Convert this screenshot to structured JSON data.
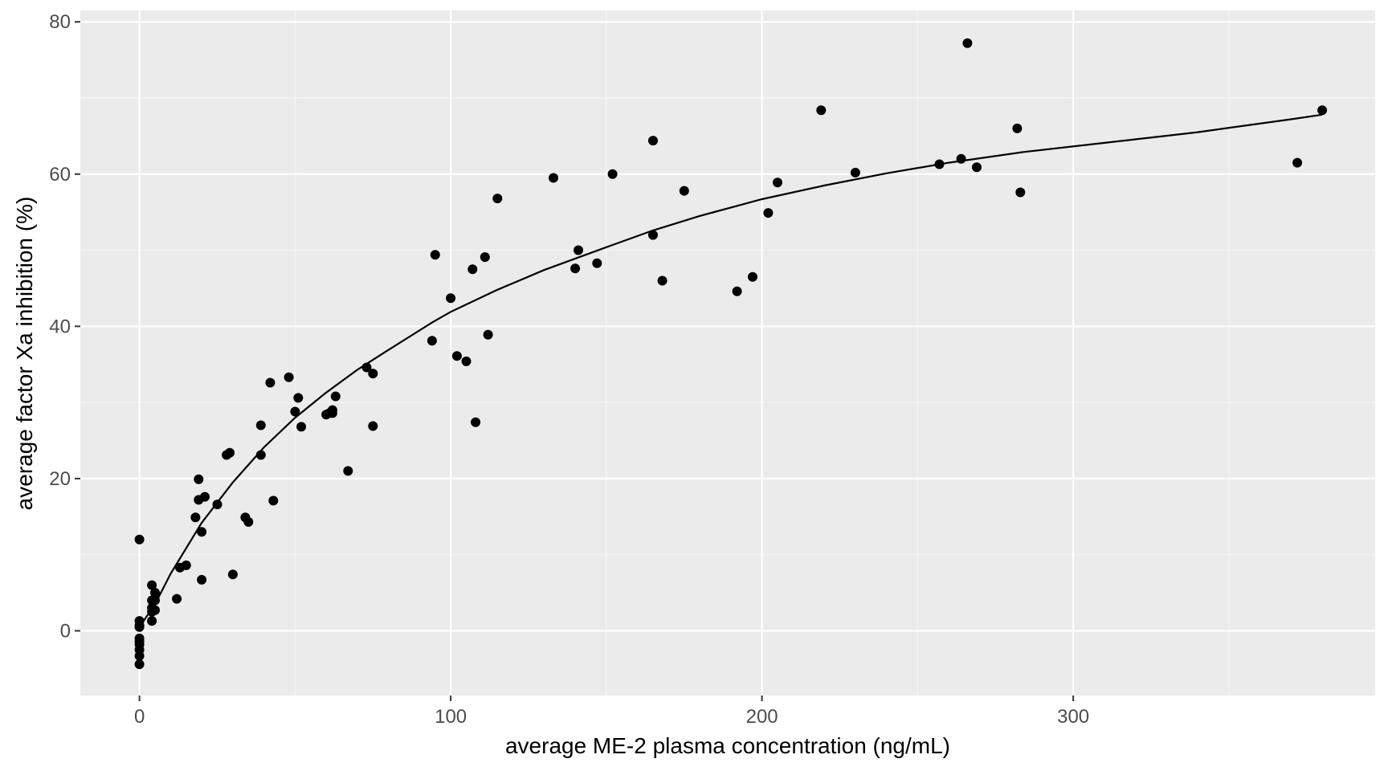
{
  "chart_data": {
    "type": "scatter",
    "title": "",
    "xlabel": "average ME-2 plasma concentration (ng/mL)",
    "ylabel": "average factor Xa inhibition (%)",
    "xlim": [
      -19,
      397
    ],
    "ylim": [
      -8.5,
      81.5
    ],
    "xticks": [
      0,
      100,
      200,
      300
    ],
    "yticks": [
      0,
      20,
      40,
      60,
      80
    ],
    "xtick_labels": [
      "0",
      "100",
      "200",
      "300"
    ],
    "ytick_labels": [
      "0",
      "20",
      "40",
      "60",
      "80"
    ],
    "grid": true,
    "legend": "none",
    "colors": {
      "panel": "#ebebeb",
      "grid_major": "#ffffff",
      "grid_minor": "#f5f5f5",
      "points": "#000000",
      "fit_line": "#000000"
    },
    "series": [
      {
        "kind": "points",
        "x": [
          0,
          0,
          0,
          0,
          0,
          0,
          0,
          0,
          0,
          0,
          4,
          4,
          4,
          4,
          4,
          5,
          5,
          5,
          12,
          13,
          15,
          18,
          19,
          19,
          20,
          20,
          21,
          25,
          28,
          29,
          30,
          34,
          35,
          39,
          39,
          42,
          43,
          48,
          50,
          51,
          52,
          60,
          61,
          62,
          62,
          63,
          67,
          73,
          75,
          75,
          94,
          95,
          100,
          102,
          105,
          107,
          108,
          111,
          112,
          115,
          133,
          140,
          141,
          147,
          152,
          165,
          165,
          168,
          175,
          192,
          197,
          202,
          205,
          219,
          230,
          257,
          264,
          266,
          269,
          282,
          283,
          372,
          380
        ],
        "y": [
          12,
          1.3,
          0.5,
          -1,
          -1.8,
          -2.5,
          -3.3,
          -4.4,
          0.7,
          -1.4,
          6,
          4,
          3,
          1.3,
          2.5,
          5,
          4,
          2.7,
          4.2,
          8.3,
          8.6,
          14.9,
          19.9,
          17.2,
          13,
          6.7,
          17.6,
          16.6,
          23.1,
          23.4,
          7.4,
          14.9,
          14.3,
          27,
          23.1,
          32.6,
          17.1,
          33.3,
          28.8,
          30.6,
          26.8,
          28.4,
          28.6,
          28.6,
          29,
          30.8,
          21,
          34.6,
          33.8,
          26.9,
          38.1,
          49.4,
          43.7,
          36.1,
          35.4,
          47.5,
          27.4,
          49.1,
          38.9,
          56.8,
          59.5,
          47.6,
          50,
          48.3,
          60,
          64.4,
          52,
          46,
          57.8,
          44.6,
          46.5,
          54.9,
          58.9,
          68.4,
          60.2,
          61.3,
          62,
          77.2,
          60.9,
          66,
          57.6,
          61.5,
          68.4
        ]
      },
      {
        "kind": "line",
        "x": [
          0,
          5,
          10,
          20,
          30,
          40,
          50,
          60,
          70,
          80,
          94,
          100,
          115,
          130,
          150,
          165,
          180,
          200,
          220,
          240,
          260,
          284,
          310,
          340,
          370,
          380
        ],
        "y": [
          0.5,
          3.5,
          7.5,
          14.2,
          19.5,
          24.1,
          28.0,
          31.3,
          34.3,
          36.9,
          40.5,
          41.9,
          44.8,
          47.4,
          50.4,
          52.6,
          54.5,
          56.7,
          58.5,
          60.1,
          61.5,
          62.9,
          64.1,
          65.5,
          67.2,
          67.8
        ]
      }
    ]
  }
}
